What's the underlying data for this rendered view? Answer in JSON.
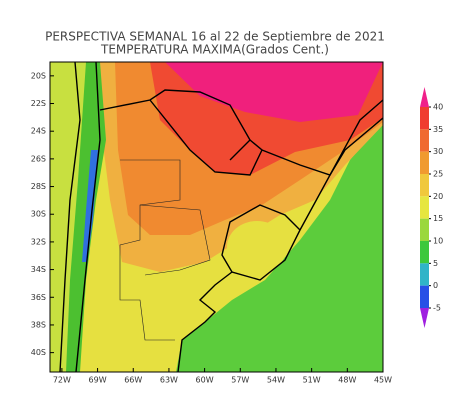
{
  "map": {
    "title": "PERSPECTIVA SEMANAL  16 al 22 de Septiembre de 2021",
    "subtitle": "TEMPERATURA MAXIMA(Grados Cent.)",
    "xlim": [
      -73,
      -45
    ],
    "ylim": [
      -41.4,
      -19
    ],
    "xticks": [
      {
        "value": -72,
        "label": "72W"
      },
      {
        "value": -69,
        "label": "69W"
      },
      {
        "value": -66,
        "label": "66W"
      },
      {
        "value": -63,
        "label": "63W"
      },
      {
        "value": -60,
        "label": "60W"
      },
      {
        "value": -57,
        "label": "57W"
      },
      {
        "value": -54,
        "label": "54W"
      },
      {
        "value": -51,
        "label": "51W"
      },
      {
        "value": -48,
        "label": "48W"
      },
      {
        "value": -45,
        "label": "45W"
      }
    ],
    "yticks": [
      {
        "value": -20,
        "label": "20S"
      },
      {
        "value": -22,
        "label": "22S"
      },
      {
        "value": -24,
        "label": "24S"
      },
      {
        "value": -26,
        "label": "26S"
      },
      {
        "value": -28,
        "label": "28S"
      },
      {
        "value": -30,
        "label": "30S"
      },
      {
        "value": -32,
        "label": "32S"
      },
      {
        "value": -34,
        "label": "34S"
      },
      {
        "value": -36,
        "label": "36S"
      },
      {
        "value": -38,
        "label": "38S"
      },
      {
        "value": -40,
        "label": "40S"
      }
    ],
    "colorbar": {
      "ticks": [
        40,
        35,
        30,
        25,
        20,
        15,
        10,
        5,
        0,
        -5
      ],
      "colors": [
        "#f0208a",
        "#f03c30",
        "#f06a30",
        "#f09a30",
        "#f0c83c",
        "#e6e640",
        "#9ad83c",
        "#3cc83c",
        "#30b4c8",
        "#2850e6",
        "#a020e0"
      ]
    }
  }
}
